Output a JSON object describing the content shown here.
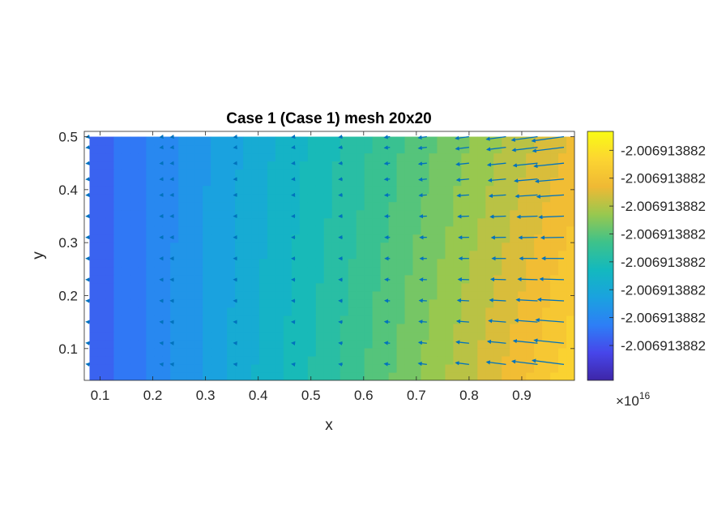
{
  "chart_data": {
    "type": "heatmap",
    "subtype": "filled contour with quiver arrows",
    "title": "Case 1 (Case 1) mesh 20x20",
    "xlabel": "x",
    "ylabel": "y",
    "xlim": [
      0.07,
      1.0
    ],
    "ylim": [
      0.04,
      0.51
    ],
    "x_ticks": [
      "0.1",
      "0.2",
      "0.3",
      "0.4",
      "0.5",
      "0.6",
      "0.7",
      "0.8",
      "0.9"
    ],
    "x_tick_values": [
      0.1,
      0.2,
      0.3,
      0.4,
      0.5,
      0.6,
      0.7,
      0.8,
      0.9
    ],
    "y_ticks": [
      "0.1",
      "0.2",
      "0.3",
      "0.4",
      "0.5"
    ],
    "y_tick_values": [
      0.1,
      0.2,
      0.3,
      0.4,
      0.5
    ],
    "data_extent": {
      "x": [
        0.08,
        1.0
      ],
      "y": [
        0.04,
        0.5
      ]
    },
    "colormap": "parula",
    "colormap_colors": [
      "#3e26a8",
      "#4746ea",
      "#2d7ff6",
      "#1aa2df",
      "#13b9be",
      "#3ec28a",
      "#98c84f",
      "#efb934",
      "#fcd531",
      "#f9fb15"
    ],
    "colorbar": {
      "ticks": [
        "-2.006913882",
        "-2.006913882",
        "-2.006913882",
        "-2.006913882",
        "-2.006913882",
        "-2.006913882",
        "-2.006913882",
        "-2.006913882"
      ],
      "tick_fractions": [
        0.14,
        0.252,
        0.364,
        0.476,
        0.588,
        0.7,
        0.812,
        0.924
      ],
      "multiplier": "×10",
      "exponent": "16"
    },
    "field_description_levels": {
      "low_corner": "top-left (blue/violet)",
      "high_corner": "bottom-right (orange)"
    },
    "quiver": {
      "color": "#0072bd",
      "columns_x": [
        0.08,
        0.22,
        0.24,
        0.36,
        0.47,
        0.56,
        0.65,
        0.72,
        0.8,
        0.87,
        0.93,
        0.98
      ],
      "rows_y": [
        0.5,
        0.48,
        0.45,
        0.42,
        0.39,
        0.35,
        0.31,
        0.27,
        0.23,
        0.19,
        0.15,
        0.11,
        0.07
      ]
    }
  }
}
